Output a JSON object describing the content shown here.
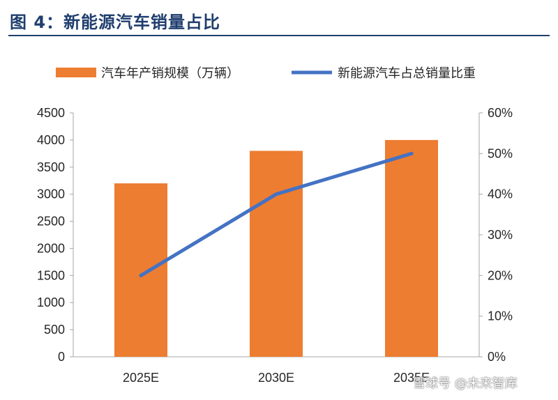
{
  "figure_title": "图 4：新能源汽车销量占比",
  "watermark": "雪球号 @未来智库",
  "colors": {
    "bar": "#ED7D31",
    "line": "#4472C4",
    "axis": "#a6a6a6",
    "title": "#1f3e6e"
  },
  "chart_data": {
    "type": "bar",
    "categories": [
      "2025E",
      "2030E",
      "2035E"
    ],
    "series": [
      {
        "name": "汽车年产销规模（万辆）",
        "type": "bar",
        "axis": "left",
        "values": [
          3200,
          3800,
          4000
        ]
      },
      {
        "name": "新能源汽车占总销量比重",
        "type": "line",
        "axis": "right",
        "values": [
          0.2,
          0.4,
          0.5
        ]
      }
    ],
    "y_left": {
      "min": 0,
      "max": 4500,
      "ticks": [
        0,
        500,
        1000,
        1500,
        2000,
        2500,
        3000,
        3500,
        4000,
        4500
      ]
    },
    "y_right": {
      "min": 0,
      "max": 0.6,
      "ticks": [
        "0%",
        "10%",
        "20%",
        "30%",
        "40%",
        "50%",
        "60%"
      ]
    },
    "legend_position": "top",
    "grid": false
  }
}
